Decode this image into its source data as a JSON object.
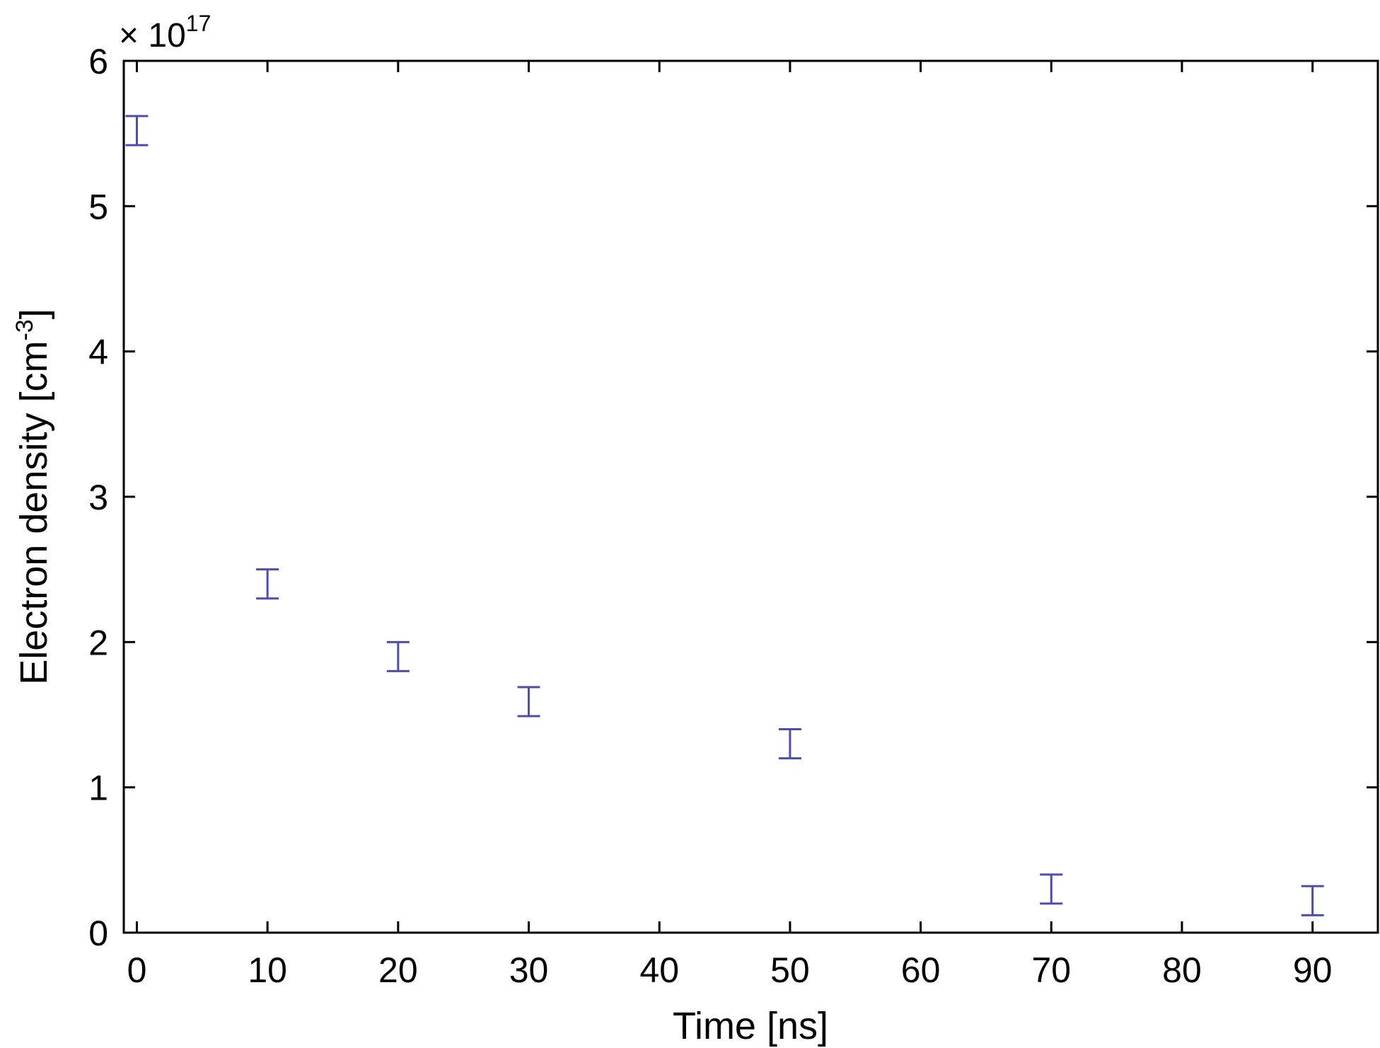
{
  "chart_data": {
    "type": "scatter",
    "subtype": "errorbar",
    "title": "",
    "xlabel": "Time [ns]",
    "ylabel_main": "Electron density [cm",
    "ylabel_sup": "-3",
    "ylabel_end": "]",
    "y_exponent_prefix": "× 10",
    "y_exponent_power": "17",
    "xlim": [
      -1,
      95
    ],
    "ylim": [
      0,
      6
    ],
    "xticks": [
      0,
      10,
      20,
      30,
      40,
      50,
      60,
      70,
      80,
      90
    ],
    "yticks": [
      0,
      1,
      2,
      3,
      4,
      5,
      6
    ],
    "grid": false,
    "legend": "none",
    "color": "#4d4daa",
    "points": [
      {
        "x": 0,
        "y": 5.52,
        "lower": 5.42,
        "upper": 5.62
      },
      {
        "x": 10,
        "y": 2.4,
        "lower": 2.3,
        "upper": 2.5
      },
      {
        "x": 20,
        "y": 1.9,
        "lower": 1.8,
        "upper": 2.0
      },
      {
        "x": 30,
        "y": 1.59,
        "lower": 1.49,
        "upper": 1.69
      },
      {
        "x": 50,
        "y": 1.3,
        "lower": 1.2,
        "upper": 1.4
      },
      {
        "x": 70,
        "y": 0.3,
        "lower": 0.2,
        "upper": 0.4
      },
      {
        "x": 90,
        "y": 0.22,
        "lower": 0.12,
        "upper": 0.32
      }
    ]
  }
}
